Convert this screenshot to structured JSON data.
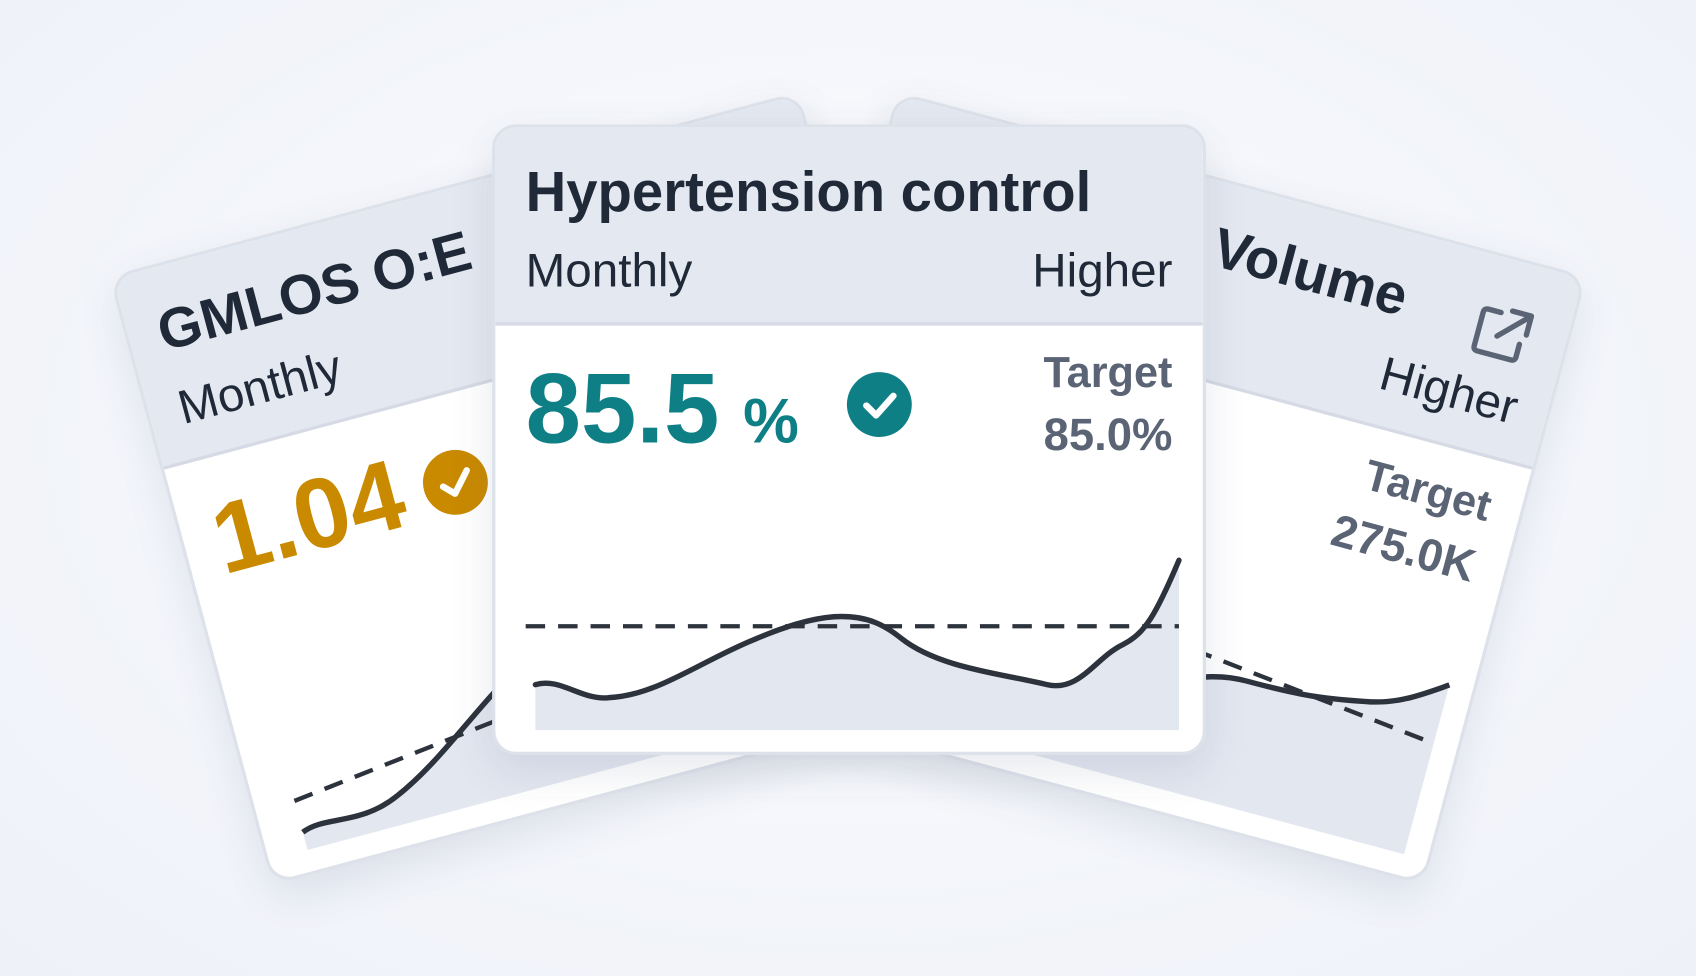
{
  "cards": [
    {
      "title": "GMLOS O:E",
      "frequency": "Monthly",
      "value": 1.04
    },
    {
      "title": "Hypertension control",
      "frequency": "Monthly",
      "direction": "Higher",
      "value": 85.5,
      "unit": "%",
      "target_label": "Target",
      "target": "85.0%"
    },
    {
      "title": "Volume",
      "direction": "Higher",
      "target_label": "Target",
      "target": "275.0K"
    }
  ]
}
